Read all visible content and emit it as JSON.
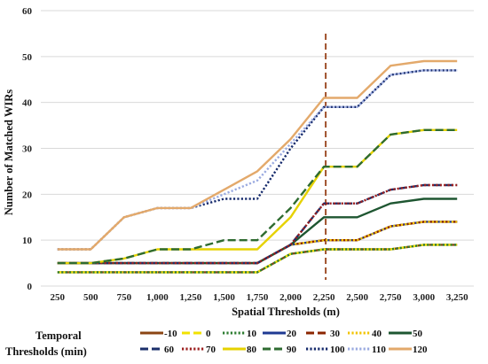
{
  "chart_data": {
    "type": "line",
    "xlabel": "Spatial Thresholds  (m)",
    "ylabel": "Number of Matched WIRs",
    "legend_title_line1": "Temporal",
    "legend_title_line2": "Thresholds  (min)",
    "legend_position": "bottom",
    "grid": "horizontal",
    "ylim": [
      0,
      60
    ],
    "yticks": [
      "0",
      "10",
      "20",
      "30",
      "40",
      "50",
      "60"
    ],
    "categories": [
      "250",
      "500",
      "750",
      "1,000",
      "1,250",
      "1,500",
      "1,750",
      "2,000",
      "2,250",
      "2,500",
      "2,750",
      "3,000",
      "3,250"
    ],
    "vertical_marker": {
      "x": "2,250",
      "color": "#A0522D"
    },
    "series": [
      {
        "name": "-10",
        "color": "#8B4513",
        "dash": "solid",
        "values": [
          3,
          3,
          3,
          3,
          3,
          3,
          3,
          7,
          8,
          8,
          8,
          9,
          9
        ]
      },
      {
        "name": "0",
        "color": "#F2E200",
        "dash": "dashed",
        "values": [
          3,
          3,
          3,
          3,
          3,
          3,
          3,
          7,
          8,
          8,
          8,
          9,
          9
        ]
      },
      {
        "name": "10",
        "color": "#2E7D32",
        "dash": "dotted",
        "values": [
          3,
          3,
          3,
          3,
          3,
          3,
          3,
          7,
          8,
          8,
          8,
          9,
          9
        ]
      },
      {
        "name": "20",
        "color": "#1F3A93",
        "dash": "solid",
        "values": [
          5,
          5,
          5,
          5,
          5,
          5,
          5,
          9,
          10,
          10,
          13,
          14,
          14
        ]
      },
      {
        "name": "30",
        "color": "#8B2500",
        "dash": "dashed",
        "values": [
          5,
          5,
          5,
          5,
          5,
          5,
          5,
          9,
          10,
          10,
          13,
          14,
          14
        ]
      },
      {
        "name": "40",
        "color": "#F2C300",
        "dash": "dotted",
        "values": [
          5,
          5,
          5,
          5,
          5,
          5,
          5,
          9,
          10,
          10,
          13,
          14,
          14
        ]
      },
      {
        "name": "50",
        "color": "#1E5631",
        "dash": "solid",
        "values": [
          5,
          5,
          5,
          5,
          5,
          5,
          5,
          9,
          15,
          15,
          18,
          19,
          19
        ]
      },
      {
        "name": "60",
        "color": "#1B2F6B",
        "dash": "dashed",
        "values": [
          5,
          5,
          5,
          5,
          5,
          5,
          5,
          9,
          18,
          18,
          21,
          22,
          22
        ]
      },
      {
        "name": "70",
        "color": "#9C1F1F",
        "dash": "dotted",
        "values": [
          5,
          5,
          5,
          5,
          5,
          5,
          5,
          9,
          18,
          18,
          21,
          22,
          22
        ]
      },
      {
        "name": "80",
        "color": "#E6D200",
        "dash": "solid",
        "values": [
          5,
          5,
          6,
          8,
          8,
          8,
          8,
          15,
          26,
          26,
          33,
          34,
          34
        ]
      },
      {
        "name": "90",
        "color": "#2E6B30",
        "dash": "dashed",
        "values": [
          5,
          5,
          6,
          8,
          8,
          10,
          10,
          17,
          26,
          26,
          33,
          34,
          34
        ]
      },
      {
        "name": "100",
        "color": "#14296B",
        "dash": "dotted",
        "values": [
          8,
          8,
          15,
          17,
          17,
          19,
          19,
          30,
          39,
          39,
          46,
          47,
          47
        ]
      },
      {
        "name": "110",
        "color": "#9AAAE0",
        "dash": "dotted",
        "values": [
          8,
          8,
          15,
          17,
          17,
          20,
          23,
          31,
          39,
          39,
          46,
          47,
          47
        ]
      },
      {
        "name": "120",
        "color": "#E3A96B",
        "dash": "solid",
        "values": [
          8,
          8,
          15,
          17,
          17,
          21,
          25,
          32,
          41,
          41,
          48,
          49,
          49
        ]
      }
    ]
  }
}
